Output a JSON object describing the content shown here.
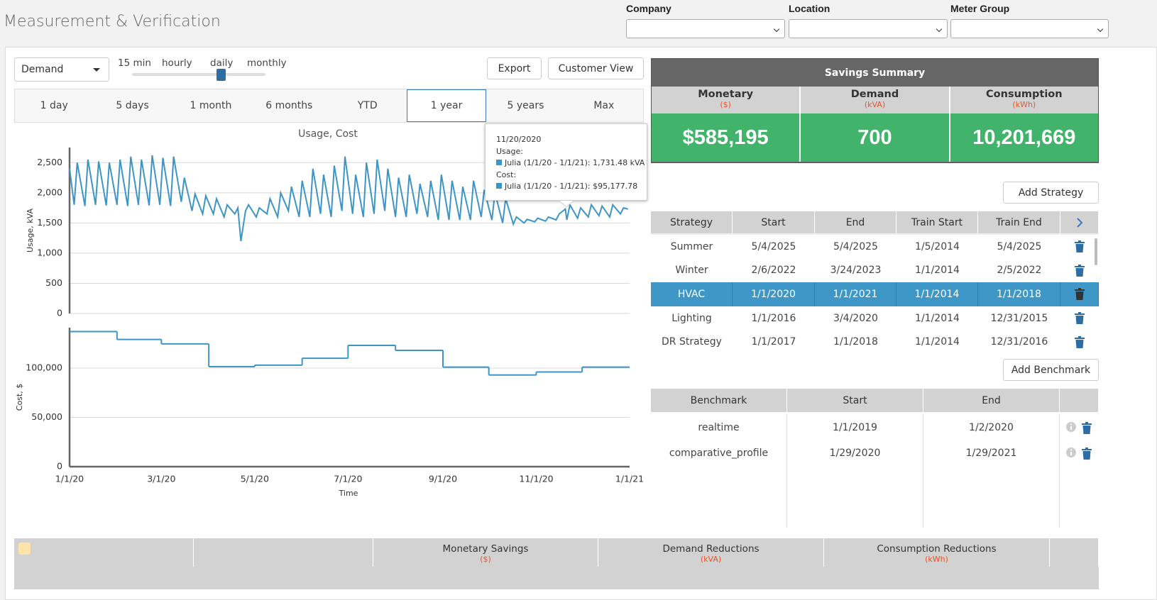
{
  "header": {
    "title": "Measurement & Verification",
    "filters": [
      "Company",
      "Location",
      "Meter Group"
    ]
  },
  "controls": {
    "metric": "Demand",
    "intervals": [
      "15 min",
      "hourly",
      "daily",
      "monthly"
    ],
    "buttons": [
      "Export",
      "Customer View"
    ],
    "ranges": [
      "1 day",
      "5 days",
      "1 month",
      "6 months",
      "YTD",
      "1 year",
      "5 years",
      "Max"
    ]
  },
  "chart_data": [
    {
      "type": "line",
      "title": "Usage, Cost",
      "y_label": "Usage, kVA",
      "color": "#3d95c6",
      "x": [
        "1/1/20",
        "1/4/20",
        "1/6/20",
        "1/11/20",
        "1/13/20",
        "1/18/20",
        "1/20/20",
        "1/25/20",
        "1/27/20",
        "2/1/20",
        "2/3/20",
        "2/8/20",
        "2/10/20",
        "2/15/20",
        "2/17/20",
        "2/22/20",
        "2/24/20",
        "2/29/20",
        "3/2/20",
        "3/7/20",
        "3/9/20",
        "3/14/20",
        "3/16/20",
        "3/21/20",
        "3/23/20",
        "3/28/20",
        "3/30/20",
        "4/4/20",
        "4/6/20",
        "4/11/20",
        "4/13/20",
        "4/18/20",
        "4/20/20",
        "4/22/20",
        "4/25/20",
        "4/27/20",
        "5/2/20",
        "5/4/20",
        "5/9/20",
        "5/11/20",
        "5/16/20",
        "5/18/20",
        "5/23/20",
        "5/25/20",
        "5/30/20",
        "6/1/20",
        "6/6/20",
        "6/8/20",
        "6/13/20",
        "6/15/20",
        "6/20/20",
        "6/22/20",
        "6/27/20",
        "6/29/20",
        "7/4/20",
        "7/6/20",
        "7/11/20",
        "7/13/20",
        "7/18/20",
        "7/20/20",
        "7/25/20",
        "7/27/20",
        "8/1/20",
        "8/3/20",
        "8/8/20",
        "8/10/20",
        "8/15/20",
        "8/17/20",
        "8/22/20",
        "8/24/20",
        "8/29/20",
        "8/31/20",
        "9/5/20",
        "9/7/20",
        "9/12/20",
        "9/14/20",
        "9/19/20",
        "9/21/20",
        "9/26/20",
        "9/28/20",
        "10/3/20",
        "10/5/20",
        "10/10/20",
        "10/12/20",
        "10/17/20",
        "10/19/20",
        "10/24/20",
        "10/26/20",
        "10/31/20",
        "11/2/20",
        "11/7/20",
        "11/9/20",
        "11/14/20",
        "11/16/20",
        "11/20/20",
        "11/21/20",
        "11/23/20",
        "11/28/20",
        "11/30/20",
        "12/5/20",
        "12/7/20",
        "12/12/20",
        "12/14/20",
        "12/19/20",
        "12/21/20",
        "12/26/20",
        "12/28/20",
        "12/31/20"
      ],
      "values": [
        2400,
        1800,
        2500,
        1780,
        2550,
        1800,
        2520,
        1790,
        2500,
        1800,
        2550,
        1780,
        2600,
        1800,
        2550,
        1790,
        2620,
        1800,
        2580,
        1780,
        2600,
        1850,
        2250,
        1700,
        1980,
        1650,
        1950,
        1650,
        1900,
        1600,
        1800,
        1650,
        1750,
        1200,
        1700,
        1800,
        1600,
        1750,
        1650,
        1900,
        1600,
        2000,
        1700,
        2100,
        1600,
        2200,
        1600,
        2400,
        1650,
        2300,
        1600,
        2450,
        1700,
        2600,
        1650,
        2300,
        1600,
        2500,
        1650,
        2550,
        1700,
        2400,
        1600,
        2250,
        1600,
        2300,
        1650,
        2150,
        1600,
        2200,
        1550,
        2300,
        1550,
        2200,
        1550,
        2100,
        1550,
        2200,
        1600,
        2050,
        1550,
        2000,
        1500,
        1900,
        1480,
        1600,
        1500,
        1560,
        1520,
        1580,
        1530,
        1600,
        1550,
        1650,
        1731.48,
        1550,
        1800,
        1580,
        1750,
        1600,
        1800,
        1620,
        1780,
        1600,
        1800,
        1650,
        1750,
        1730
      ],
      "xlim": [
        "1/1/20",
        "1/1/21"
      ],
      "ylim": [
        0,
        2750
      ],
      "yticks": [
        0,
        500,
        {
          "value": 1000,
          "label": "1,000"
        },
        {
          "value": 1500,
          "label": "1,500"
        },
        {
          "value": 2000,
          "label": "2,000"
        },
        {
          "value": 2500,
          "label": "2,500"
        }
      ],
      "grid": true
    },
    {
      "type": "step",
      "y_label": "Cost, $",
      "x_label": "Time",
      "color": "#3d95c6",
      "x": [
        "1/1/20",
        "2/1/20",
        "3/1/20",
        "4/1/20",
        "5/1/20",
        "6/1/20",
        "7/1/20",
        "8/1/20",
        "9/1/20",
        "10/1/20",
        "11/1/20",
        "12/1/20"
      ],
      "values": [
        137000,
        129000,
        124500,
        101400,
        103000,
        110000,
        123000,
        118000,
        101000,
        93000,
        96000,
        101000
      ],
      "xlim": [
        "1/1/20",
        "1/1/21"
      ],
      "ylim": [
        0,
        141000
      ],
      "xticks": [
        "1/1/20",
        "3/1/20",
        "5/1/20",
        "7/1/20",
        "9/1/20",
        "11/1/20",
        "1/1/21"
      ],
      "yticks": [
        0,
        {
          "value": 50000,
          "label": "50,000"
        },
        {
          "value": 100000,
          "label": "100,000"
        }
      ],
      "grid": true
    }
  ],
  "tooltip": {
    "date": "11/20/2020",
    "lines": [
      {
        "heading": "Usage:",
        "text": "Julia (1/1/20 - 1/1/21): 1,731.48 kVA"
      },
      {
        "heading": "Cost:",
        "text": "Julia (1/1/20 - 1/1/21): $95,177.78"
      }
    ]
  },
  "savings_summary": {
    "title": "Savings Summary",
    "cards": [
      {
        "label": "Monetary",
        "unit": "($)",
        "value": "$585,195"
      },
      {
        "label": "Demand",
        "unit": "(kVA)",
        "value": "700"
      },
      {
        "label": "Consumption",
        "unit": "(kWh)",
        "value": "10,201,669"
      }
    ]
  },
  "strategy_table": {
    "add_button": "Add Strategy",
    "columns": [
      "Strategy",
      "Start",
      "End",
      "Train Start",
      "Train End"
    ],
    "rows": [
      [
        "Summer",
        "5/4/2025",
        "5/4/2025",
        "1/5/2014",
        "5/4/2025"
      ],
      [
        "Winter",
        "2/6/2022",
        "3/24/2023",
        "1/1/2014",
        "2/5/2022"
      ],
      [
        "HVAC",
        "1/1/2020",
        "1/1/2021",
        "1/1/2014",
        "1/1/2018"
      ],
      [
        "Lighting",
        "1/1/2016",
        "3/4/2020",
        "1/1/2014",
        "12/31/2015"
      ],
      [
        "DR Strategy",
        "1/1/2017",
        "1/1/2018",
        "1/1/2014",
        "12/31/2016"
      ]
    ]
  },
  "benchmark_table": {
    "add_button": "Add Benchmark",
    "columns": [
      "Benchmark",
      "Start",
      "End"
    ],
    "rows": [
      [
        "realtime",
        "1/1/2019",
        "1/2/2020"
      ],
      [
        "comparative_profile",
        "1/29/2020",
        "1/29/2021"
      ]
    ]
  },
  "bottom_table": {
    "columns": [
      "Monetary Savings",
      "Demand Reductions",
      "Consumption Reductions"
    ],
    "units": [
      "($)",
      "(kVA)",
      "(kWh)"
    ]
  }
}
